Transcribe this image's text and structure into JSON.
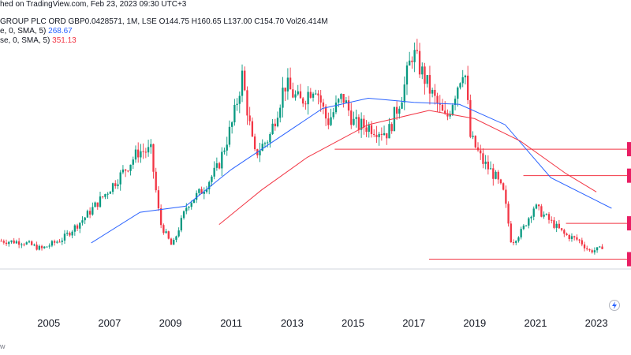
{
  "header": {
    "published": "hed on TradingView.com, Feb 23, 2023 09:30 UTC+3",
    "symbol": "GROUP PLC ORD GBP0.0428571, 1M, LSE",
    "o_label": "O",
    "o_value": "144.75",
    "h_label": "H",
    "h_value": "160.65",
    "l_label": "L",
    "l_value": "137.00",
    "c_label": "C",
    "c_value": "154.70",
    "vol_label": "Vol",
    "vol_value": "26.414M",
    "ma1": "e, 0, SMA, 5)",
    "ma1_value": "268.67",
    "ma2": "se, 0, SMA, 5)",
    "ma2_value": "351.13"
  },
  "footer": {
    "text": "w"
  },
  "chart_data": {
    "type": "candlestick",
    "x_tick_labels": [
      "2005",
      "2007",
      "2009",
      "2011",
      "2013",
      "2015",
      "2017",
      "2019",
      "2021",
      "2023"
    ],
    "x_range": [
      2003.4,
      2023.8
    ],
    "y_range": [
      40,
      650
    ],
    "last_close": 154.7,
    "anchors": [
      [
        2003.4,
        175
      ],
      [
        2004.2,
        172
      ],
      [
        2004.8,
        155
      ],
      [
        2005.5,
        180
      ],
      [
        2006.2,
        230
      ],
      [
        2006.9,
        290
      ],
      [
        2007.5,
        345
      ],
      [
        2008.0,
        395
      ],
      [
        2008.4,
        395
      ],
      [
        2008.7,
        220
      ],
      [
        2009.1,
        160
      ],
      [
        2009.6,
        265
      ],
      [
        2010.1,
        300
      ],
      [
        2010.6,
        355
      ],
      [
        2011.1,
        470
      ],
      [
        2011.4,
        580
      ],
      [
        2011.8,
        385
      ],
      [
        2012.3,
        430
      ],
      [
        2012.8,
        560
      ],
      [
        2013.3,
        515
      ],
      [
        2013.8,
        560
      ],
      [
        2014.2,
        465
      ],
      [
        2014.7,
        530
      ],
      [
        2015.1,
        460
      ],
      [
        2015.6,
        455
      ],
      [
        2016.2,
        440
      ],
      [
        2016.7,
        545
      ],
      [
        2017.0,
        640
      ],
      [
        2017.6,
        540
      ],
      [
        2018.1,
        470
      ],
      [
        2018.7,
        610
      ],
      [
        2018.9,
        430
      ],
      [
        2019.3,
        370
      ],
      [
        2019.7,
        335
      ],
      [
        2020.0,
        290
      ],
      [
        2020.25,
        170
      ],
      [
        2020.6,
        200
      ],
      [
        2021.0,
        260
      ],
      [
        2021.5,
        225
      ],
      [
        2022.0,
        190
      ],
      [
        2022.5,
        175
      ],
      [
        2022.8,
        150
      ],
      [
        2023.2,
        155
      ]
    ],
    "sma_blue": [
      [
        2006.4,
        170
      ],
      [
        2008.0,
        245
      ],
      [
        2009.5,
        260
      ],
      [
        2011.0,
        350
      ],
      [
        2012.5,
        425
      ],
      [
        2014.0,
        500
      ],
      [
        2015.5,
        525
      ],
      [
        2017.0,
        515
      ],
      [
        2018.5,
        510
      ],
      [
        2020.0,
        460
      ],
      [
        2021.5,
        330
      ],
      [
        2023.5,
        255
      ]
    ],
    "sma_red": [
      [
        2010.6,
        215
      ],
      [
        2012.0,
        300
      ],
      [
        2013.5,
        380
      ],
      [
        2015.5,
        460
      ],
      [
        2017.5,
        495
      ],
      [
        2019.0,
        475
      ],
      [
        2020.5,
        420
      ],
      [
        2022.0,
        340
      ],
      [
        2023.0,
        295
      ]
    ],
    "horizontal_levels": [
      {
        "y": 400,
        "x_start": 2014.4
      },
      {
        "y": 335,
        "x_start": 2020.6
      },
      {
        "y": 218,
        "x_start": 2022.0
      },
      {
        "y": 130,
        "x_start": 2017.5
      }
    ],
    "colors": {
      "up": "#089981",
      "down": "#f23645",
      "sma_blue": "#2962ff",
      "sma_red": "#f23645",
      "levels": "#f23645",
      "text": "#131722"
    }
  }
}
